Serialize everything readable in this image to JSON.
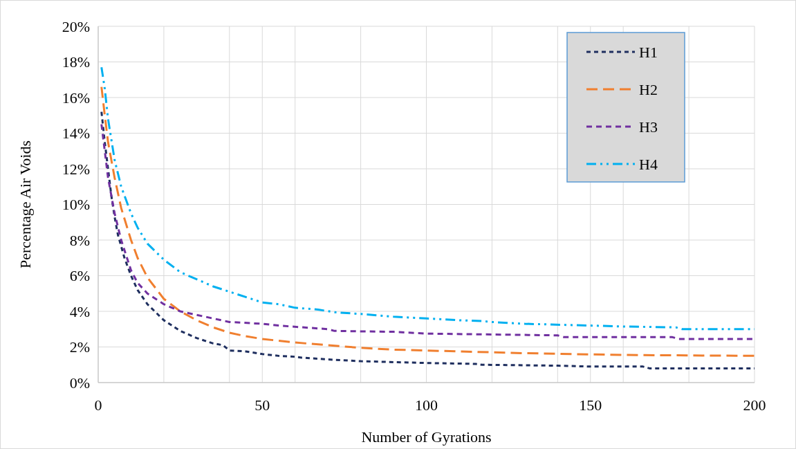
{
  "chart_data": {
    "type": "line",
    "xlabel": "Number of Gyrations",
    "ylabel": "Percentage Air Voids",
    "xlim": [
      0,
      200
    ],
    "ylim": [
      0,
      20
    ],
    "xticks": [
      0,
      {
        "value": 20,
        "label": null
      },
      {
        "value": 40,
        "label": null
      },
      50,
      {
        "value": 60,
        "label": null
      },
      {
        "value": 80,
        "label": null
      },
      100,
      {
        "value": 120,
        "label": null
      },
      {
        "value": 140,
        "label": null
      },
      150,
      {
        "value": 160,
        "label": null
      },
      {
        "value": 180,
        "label": null
      },
      200
    ],
    "yticks": [
      {
        "value": 0,
        "label": "0%"
      },
      {
        "value": 2,
        "label": "2%"
      },
      {
        "value": 4,
        "label": "4%"
      },
      {
        "value": 6,
        "label": "6%"
      },
      {
        "value": 8,
        "label": "8%"
      },
      {
        "value": 10,
        "label": "10%"
      },
      {
        "value": 12,
        "label": "12%"
      },
      {
        "value": 14,
        "label": "14%"
      },
      {
        "value": 16,
        "label": "16%"
      },
      {
        "value": 18,
        "label": "18%"
      },
      {
        "value": 20,
        "label": "20%"
      }
    ],
    "grid": true,
    "legend": "top right",
    "line_style": "dashed",
    "series": [
      {
        "name": "H1",
        "color": "#1f2f5f",
        "x": [
          1,
          2,
          3,
          4,
          5,
          6,
          8,
          10,
          12,
          15,
          20,
          25,
          30,
          35,
          38,
          40,
          45,
          50,
          55,
          60,
          62,
          70,
          80,
          90,
          100,
          115,
          117,
          140,
          150,
          166,
          168,
          200
        ],
        "values": [
          15.2,
          13.5,
          12,
          10.5,
          9.3,
          8.3,
          7,
          6,
          5.2,
          4.4,
          3.5,
          2.9,
          2.5,
          2.2,
          2.1,
          1.8,
          1.75,
          1.6,
          1.5,
          1.45,
          1.4,
          1.3,
          1.2,
          1.15,
          1.1,
          1.05,
          1.0,
          0.95,
          0.9,
          0.9,
          0.8,
          0.8
        ]
      },
      {
        "name": "H2",
        "color": "#f07f2f",
        "x": [
          1,
          2,
          3,
          5,
          7,
          10,
          12,
          15,
          20,
          25,
          30,
          35,
          40,
          45,
          50,
          55,
          60,
          70,
          80,
          90,
          100,
          110,
          130,
          160,
          200
        ],
        "values": [
          16.6,
          15,
          13.5,
          11.5,
          9.8,
          8,
          7,
          5.9,
          4.7,
          4,
          3.5,
          3.1,
          2.8,
          2.6,
          2.45,
          2.35,
          2.25,
          2.1,
          1.95,
          1.85,
          1.8,
          1.75,
          1.65,
          1.55,
          1.5
        ]
      },
      {
        "name": "H3",
        "color": "#7030a0",
        "x": [
          1,
          2,
          3,
          5,
          7,
          10,
          12,
          15,
          20,
          25,
          30,
          35,
          40,
          50,
          55,
          70,
          72,
          90,
          100,
          120,
          140,
          142,
          175,
          177,
          200
        ],
        "values": [
          14.5,
          13,
          11.5,
          9.5,
          8,
          6.3,
          5.6,
          5,
          4.4,
          4.0,
          3.8,
          3.6,
          3.4,
          3.3,
          3.2,
          3.0,
          2.9,
          2.85,
          2.75,
          2.7,
          2.65,
          2.55,
          2.55,
          2.45,
          2.45
        ]
      },
      {
        "name": "H4",
        "color": "#00b0f0",
        "x": [
          1,
          2,
          3,
          5,
          7,
          10,
          12,
          15,
          20,
          25,
          30,
          35,
          40,
          45,
          50,
          55,
          60,
          67,
          72,
          80,
          90,
          100,
          110,
          117,
          120,
          130,
          150,
          160,
          176,
          178,
          200
        ],
        "values": [
          17.7,
          16.5,
          14.8,
          12.5,
          11,
          9.5,
          8.7,
          7.8,
          6.9,
          6.2,
          5.8,
          5.4,
          5.1,
          4.8,
          4.5,
          4.4,
          4.2,
          4.1,
          3.95,
          3.85,
          3.7,
          3.6,
          3.5,
          3.45,
          3.4,
          3.3,
          3.2,
          3.15,
          3.1,
          3.0,
          3.0
        ]
      }
    ]
  }
}
